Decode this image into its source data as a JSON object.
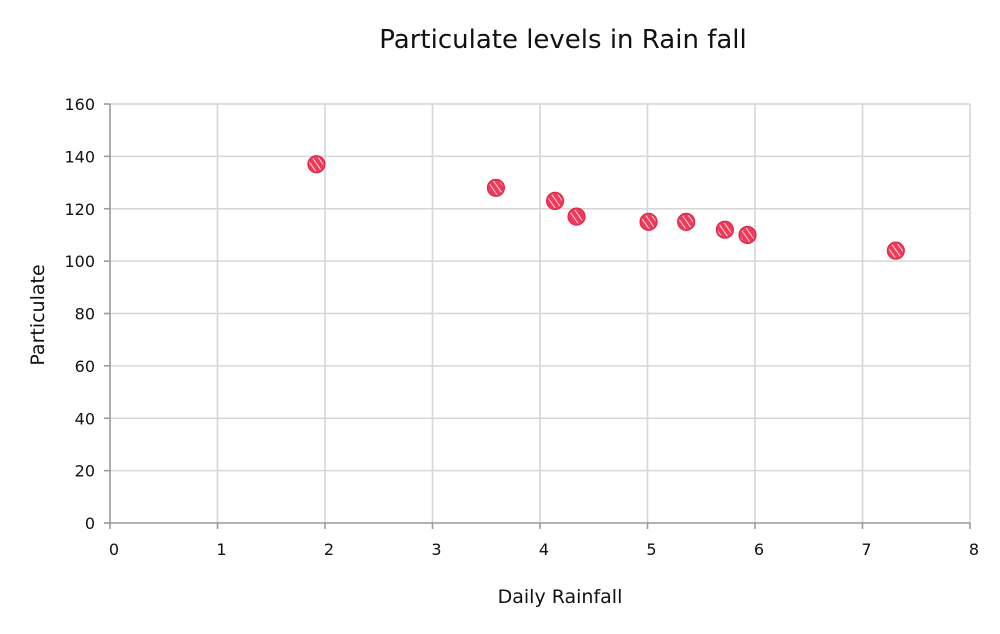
{
  "chart_data": {
    "type": "scatter",
    "title": "Particulate levels in Rain fall",
    "xlabel": "Daily Rainfall",
    "ylabel": "Particulate",
    "xlim": [
      0,
      8
    ],
    "ylim": [
      0,
      160
    ],
    "x_ticks": [
      "0",
      "1",
      "2",
      "3",
      "4",
      "5",
      "6",
      "7",
      "8"
    ],
    "y_ticks": [
      "0",
      "20",
      "40",
      "60",
      "80",
      "100",
      "120",
      "140",
      "160"
    ],
    "grid": true,
    "legend": "none",
    "point_color": "#ee3b5b",
    "points": [
      {
        "x": 1.92,
        "y": 137
      },
      {
        "x": 3.59,
        "y": 128
      },
      {
        "x": 4.14,
        "y": 123
      },
      {
        "x": 4.34,
        "y": 117
      },
      {
        "x": 5.01,
        "y": 115
      },
      {
        "x": 5.36,
        "y": 115
      },
      {
        "x": 5.72,
        "y": 112
      },
      {
        "x": 5.93,
        "y": 110
      },
      {
        "x": 7.31,
        "y": 104
      }
    ]
  }
}
